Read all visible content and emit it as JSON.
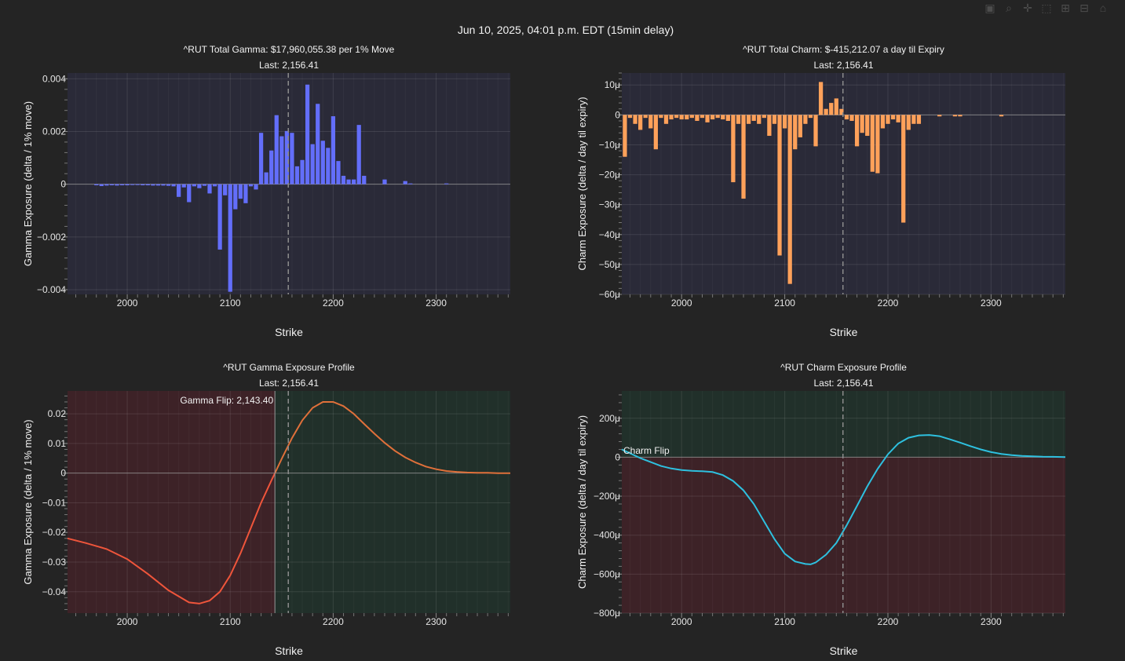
{
  "header": {
    "title": "Jun 10, 2025, 04:01 p.m. EDT (15min delay)"
  },
  "modebar": {
    "icons": [
      "camera-icon",
      "zoom-icon",
      "pan-icon",
      "box-select-icon",
      "zoom-in-icon",
      "zoom-out-icon",
      "autoscale-icon"
    ]
  },
  "colors": {
    "background": "#242424",
    "plot_bg": "#2a2a38",
    "grid": "#3b3b49",
    "gamma_bar": "#636efa",
    "charm_bar": "#ffa15a",
    "negative_region": "#3d2227",
    "positive_region": "#21302a",
    "profile_negative_line": "#ef553b",
    "profile_positive_line": "#e0703a",
    "charm_profile_line": "#2ec0df",
    "last_line": "#8c8c8c"
  },
  "chart_data": [
    {
      "id": "gamma-bars",
      "type": "bar",
      "title": "^RUT Total Gamma: $17,960,055.38 per 1% Move",
      "subtitle": "Last: 2,156.41",
      "xlabel": "Strike",
      "ylabel": "Gamma Exposure (delta / 1% move)",
      "xlim": [
        1942,
        2372
      ],
      "ylim": [
        -0.00418,
        0.00422
      ],
      "xticks": [
        2000,
        2100,
        2200,
        2300
      ],
      "xtick_labels": [
        "2000",
        "2100",
        "2200",
        "2300"
      ],
      "yticks": [
        -0.004,
        -0.002,
        0,
        0.002,
        0.004
      ],
      "ytick_labels": [
        "−0.004",
        "−0.002",
        "0",
        "0.002",
        "0.004"
      ],
      "last": 2156.41,
      "bar_width": 4,
      "x": [
        1970,
        1975,
        1980,
        1985,
        1990,
        1995,
        2000,
        2005,
        2010,
        2015,
        2020,
        2025,
        2030,
        2035,
        2040,
        2045,
        2050,
        2055,
        2060,
        2065,
        2070,
        2075,
        2080,
        2085,
        2090,
        2095,
        2100,
        2105,
        2110,
        2115,
        2120,
        2125,
        2130,
        2135,
        2140,
        2145,
        2150,
        2155,
        2160,
        2165,
        2170,
        2175,
        2180,
        2185,
        2190,
        2195,
        2200,
        2205,
        2210,
        2215,
        2220,
        2225,
        2230,
        2250,
        2270,
        2275,
        2310
      ],
      "values": [
        -4e-05,
        -7e-05,
        -5e-05,
        -4e-05,
        -5e-05,
        -4e-05,
        -4e-05,
        -3e-05,
        -3e-05,
        -4e-05,
        -4e-05,
        -5e-05,
        -5e-05,
        -5e-05,
        -6e-05,
        -8e-05,
        -0.00048,
        -0.00012,
        -0.00068,
        -8e-05,
        -0.00015,
        -6e-05,
        -0.00035,
        -8e-05,
        -0.00248,
        -0.00042,
        -0.00408,
        -0.00095,
        -0.00055,
        -0.00072,
        -8e-05,
        -0.0002,
        0.00195,
        0.00045,
        0.00128,
        0.00262,
        0.00182,
        0.00202,
        0.00195,
        0.00068,
        0.00092,
        0.00378,
        0.00152,
        0.00305,
        0.00165,
        0.00138,
        0.00258,
        0.00088,
        0.00032,
        0.00018,
        0.00018,
        0.00225,
        0.00032,
        0.00018,
        0.00012,
        3e-05,
        3e-05
      ]
    },
    {
      "id": "charm-bars",
      "type": "bar",
      "title": "^RUT Total Charm: $-415,212.07 a day til Expiry",
      "subtitle": "Last: 2,156.41",
      "xlabel": "Strike",
      "ylabel": "Charm Exposure (delta / day til expiry)",
      "xlim": [
        1942,
        2372
      ],
      "ylim": [
        -60,
        14
      ],
      "xticks": [
        2000,
        2100,
        2200,
        2300
      ],
      "xtick_labels": [
        "2000",
        "2100",
        "2200",
        "2300"
      ],
      "yticks": [
        -60,
        -50,
        -40,
        -30,
        -20,
        -10,
        0,
        10
      ],
      "ytick_labels": [
        "−60μ",
        "−50μ",
        "−40μ",
        "−30μ",
        "−20μ",
        "−10μ",
        "0",
        "10μ"
      ],
      "last": 2156.41,
      "bar_width": 4,
      "x": [
        1945,
        1950,
        1955,
        1960,
        1965,
        1970,
        1975,
        1980,
        1985,
        1990,
        1995,
        2000,
        2005,
        2010,
        2015,
        2020,
        2025,
        2030,
        2035,
        2040,
        2045,
        2050,
        2055,
        2060,
        2065,
        2070,
        2075,
        2080,
        2085,
        2090,
        2095,
        2100,
        2105,
        2110,
        2115,
        2120,
        2125,
        2130,
        2135,
        2140,
        2145,
        2150,
        2155,
        2160,
        2165,
        2170,
        2175,
        2180,
        2185,
        2190,
        2195,
        2200,
        2205,
        2210,
        2215,
        2220,
        2225,
        2230,
        2250,
        2265,
        2270,
        2310
      ],
      "values": [
        -14,
        -1,
        -3,
        -5,
        -1,
        -4.5,
        -11.5,
        -1,
        -3,
        -1.5,
        -1,
        -1.5,
        -1.5,
        -1,
        -2,
        -1,
        -2.5,
        -1.5,
        -1,
        -1.5,
        -2,
        -22.5,
        -3,
        -28,
        -3,
        -2,
        -3,
        -1,
        -7,
        -3,
        -47,
        -4.5,
        -56.5,
        -11.5,
        -7.5,
        -3,
        -1,
        -10.5,
        11,
        2,
        4,
        5.5,
        2,
        -1.5,
        -2,
        -10.5,
        -6,
        -7,
        -19,
        -19.5,
        -4.5,
        -3,
        -1.5,
        -2.5,
        -36,
        -5,
        -3,
        -3,
        -0.5,
        -0.5,
        -0.5,
        -0.5
      ]
    },
    {
      "id": "gamma-profile",
      "type": "line",
      "title": "^RUT Gamma Exposure Profile",
      "subtitle": "Last: 2,156.41",
      "xlabel": "Strike",
      "ylabel": "Gamma Exposure (delta / 1% move)",
      "xlim": [
        1942,
        2372
      ],
      "ylim": [
        -0.0472,
        0.0277
      ],
      "xticks": [
        2000,
        2100,
        2200,
        2300
      ],
      "xtick_labels": [
        "2000",
        "2100",
        "2200",
        "2300"
      ],
      "yticks": [
        -0.04,
        -0.03,
        -0.02,
        -0.01,
        0,
        0.01,
        0.02
      ],
      "ytick_labels": [
        "−0.04",
        "−0.03",
        "−0.02",
        "−0.01",
        "0",
        "0.01",
        "0.02"
      ],
      "last": 2156.41,
      "flip": 2143.4,
      "flip_label": "Gamma Flip: 2,143.40",
      "x": [
        1942,
        1960,
        1980,
        2000,
        2020,
        2040,
        2060,
        2070,
        2080,
        2090,
        2100,
        2110,
        2120,
        2130,
        2140,
        2143.4,
        2150,
        2160,
        2170,
        2180,
        2190,
        2200,
        2210,
        2220,
        2230,
        2240,
        2250,
        2260,
        2270,
        2280,
        2290,
        2300,
        2310,
        2320,
        2330,
        2340,
        2350,
        2360,
        2372
      ],
      "y": [
        -0.022,
        -0.0236,
        -0.0256,
        -0.029,
        -0.034,
        -0.0395,
        -0.0436,
        -0.044,
        -0.043,
        -0.04,
        -0.0345,
        -0.027,
        -0.0185,
        -0.01,
        -0.0025,
        0,
        0.0048,
        0.0118,
        0.0178,
        0.022,
        0.024,
        0.024,
        0.0226,
        0.02,
        0.0166,
        0.0133,
        0.0102,
        0.0075,
        0.0053,
        0.0036,
        0.0022,
        0.0013,
        0.0007,
        0.0004,
        0.0002,
        0.0001,
        0.0001,
        0,
        0
      ]
    },
    {
      "id": "charm-profile",
      "type": "line",
      "title": "^RUT Charm Exposure Profile",
      "subtitle": "Last: 2,156.41",
      "xlabel": "Strike",
      "ylabel": "Charm Exposure (delta / day til expiry)",
      "xlim": [
        1942,
        2372
      ],
      "ylim": [
        -800,
        340
      ],
      "xticks": [
        2000,
        2100,
        2200,
        2300
      ],
      "xtick_labels": [
        "2000",
        "2100",
        "2200",
        "2300"
      ],
      "yticks": [
        -800,
        -600,
        -400,
        -200,
        0,
        200
      ],
      "ytick_labels": [
        "−800μ",
        "−600μ",
        "−400μ",
        "−200μ",
        "0",
        "200μ"
      ],
      "last": 2156.41,
      "flip_label": "Charm Flip",
      "x": [
        1942,
        1950,
        1960,
        1970,
        1980,
        1990,
        2000,
        2010,
        2020,
        2030,
        2040,
        2050,
        2060,
        2070,
        2080,
        2090,
        2100,
        2110,
        2120,
        2125,
        2130,
        2140,
        2150,
        2160,
        2170,
        2180,
        2190,
        2200,
        2210,
        2220,
        2230,
        2240,
        2250,
        2260,
        2270,
        2280,
        2290,
        2300,
        2310,
        2320,
        2330,
        2340,
        2350,
        2360,
        2372
      ],
      "y": [
        40,
        20,
        -5,
        -25,
        -45,
        -58,
        -66,
        -70,
        -72,
        -76,
        -92,
        -122,
        -170,
        -240,
        -330,
        -420,
        -495,
        -535,
        -548,
        -550,
        -540,
        -500,
        -440,
        -350,
        -250,
        -150,
        -60,
        15,
        70,
        100,
        112,
        114,
        108,
        92,
        75,
        57,
        40,
        26,
        17,
        11,
        7,
        5,
        3,
        2,
        1
      ]
    }
  ]
}
